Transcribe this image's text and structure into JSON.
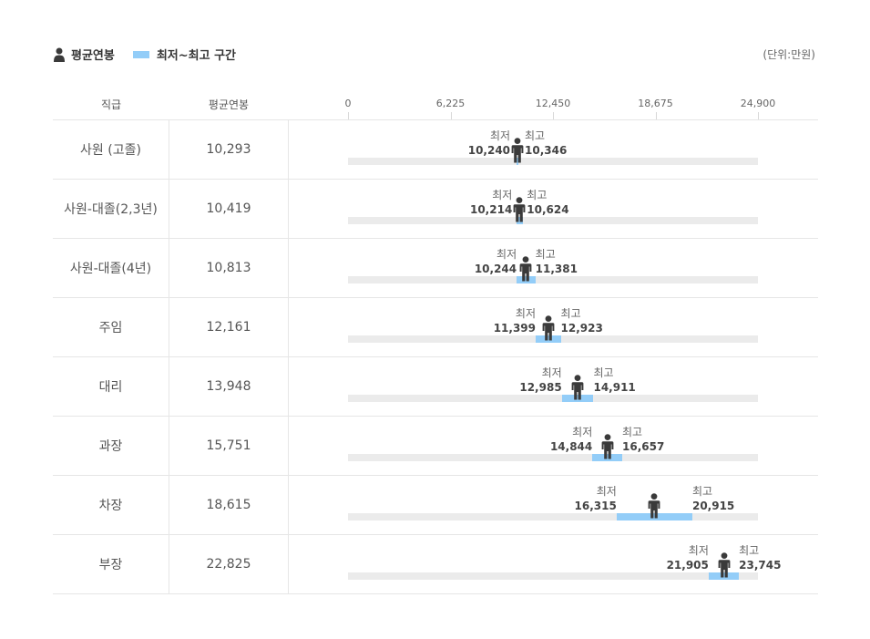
{
  "legend": {
    "avg_label": "평균연봉",
    "range_label": "최저~최고 구간"
  },
  "unit": "(단위:만원)",
  "headers": {
    "grade": "직급",
    "avg": "평균연봉"
  },
  "labels": {
    "min": "최저",
    "max": "최고"
  },
  "colors": {
    "range": "#93cdf8",
    "track": "#ebebeb",
    "person": "#3a3a3a"
  },
  "chart_data": {
    "type": "bar",
    "xlim": [
      0,
      24900
    ],
    "ticks": [
      "0",
      "6,225",
      "12,450",
      "18,675",
      "24,900"
    ],
    "tick_values": [
      0,
      6225,
      12450,
      18675,
      24900
    ],
    "rows": [
      {
        "grade": "사원 (고졸)",
        "avg": 10293,
        "avg_label": "10,293",
        "min": 10240,
        "min_label": "10,240",
        "max": 10346,
        "max_label": "10,346"
      },
      {
        "grade": "사원-대졸(2,3년)",
        "avg": 10419,
        "avg_label": "10,419",
        "min": 10214,
        "min_label": "10,214",
        "max": 10624,
        "max_label": "10,624"
      },
      {
        "grade": "사원-대졸(4년)",
        "avg": 10813,
        "avg_label": "10,813",
        "min": 10244,
        "min_label": "10,244",
        "max": 11381,
        "max_label": "11,381"
      },
      {
        "grade": "주임",
        "avg": 12161,
        "avg_label": "12,161",
        "min": 11399,
        "min_label": "11,399",
        "max": 12923,
        "max_label": "12,923"
      },
      {
        "grade": "대리",
        "avg": 13948,
        "avg_label": "13,948",
        "min": 12985,
        "min_label": "12,985",
        "max": 14911,
        "max_label": "14,911"
      },
      {
        "grade": "과장",
        "avg": 15751,
        "avg_label": "15,751",
        "min": 14844,
        "min_label": "14,844",
        "max": 16657,
        "max_label": "16,657"
      },
      {
        "grade": "차장",
        "avg": 18615,
        "avg_label": "18,615",
        "min": 16315,
        "min_label": "16,315",
        "max": 20915,
        "max_label": "20,915"
      },
      {
        "grade": "부장",
        "avg": 22825,
        "avg_label": "22,825",
        "min": 21905,
        "min_label": "21,905",
        "max": 23745,
        "max_label": "23,745"
      }
    ]
  }
}
